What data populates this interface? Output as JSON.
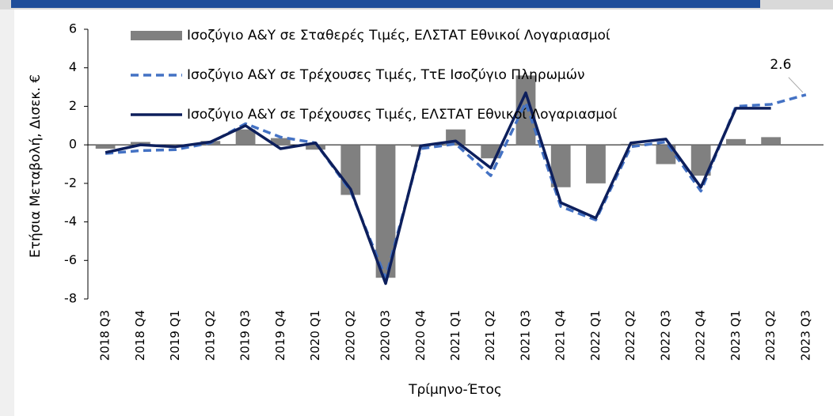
{
  "chart_data": {
    "type": "bar_line",
    "x_label": "Τρίμηνο-Έτος",
    "y_label": "Ετήσια Μεταβολή, Δισεκ. €",
    "categories": [
      "2018 Q3",
      "2018 Q4",
      "2019 Q1",
      "2019 Q2",
      "2019 Q3",
      "2019 Q4",
      "2020 Q1",
      "2020 Q2",
      "2020 Q3",
      "2020 Q4",
      "2021 Q1",
      "2021 Q2",
      "2021 Q3",
      "2021 Q4",
      "2022 Q1",
      "2022 Q2",
      "2022 Q3",
      "2022 Q4",
      "2023 Q1",
      "2023 Q2",
      "2023 Q3"
    ],
    "series": [
      {
        "name": "Ισοζύγιο Α&Υ σε Σταθερές Τιμές, ΕΛΣΤΑΤ Εθνικοί Λογαριασμοί",
        "type": "bar",
        "color": "#808080",
        "values": [
          -0.2,
          0.15,
          -0.05,
          0.2,
          0.8,
          0.35,
          -0.25,
          -2.6,
          -6.9,
          -0.1,
          0.8,
          -0.7,
          3.6,
          -2.2,
          -2.0,
          0.05,
          -1.0,
          -1.6,
          0.3,
          0.4,
          null
        ]
      },
      {
        "name": "Ισοζύγιο Α&Υ σε Τρέχουσες Τιμές, ΤτΕ Ισοζύγιο Πληρωμών",
        "type": "line",
        "dash": true,
        "color": "#4472c4",
        "values": [
          -0.45,
          -0.3,
          -0.25,
          0.1,
          1.1,
          0.4,
          0.1,
          -2.4,
          -6.9,
          -0.2,
          0.05,
          -1.6,
          2.2,
          -3.2,
          -3.9,
          -0.1,
          0.15,
          -2.4,
          2.0,
          2.1,
          2.6
        ],
        "value_labels": [
          null,
          null,
          null,
          null,
          null,
          null,
          null,
          null,
          null,
          null,
          null,
          null,
          null,
          null,
          null,
          null,
          null,
          null,
          null,
          null,
          "2.6"
        ]
      },
      {
        "name": "Ισοζύγιο Α&Υ σε Τρέχουσες Τιμές, ΕΛΣΤΑΤ Εθνικοί Λογαριασμοί",
        "type": "line",
        "dash": false,
        "color": "#0d1f5c",
        "values": [
          -0.4,
          0.0,
          -0.1,
          0.15,
          1.0,
          -0.2,
          0.1,
          -2.3,
          -7.2,
          -0.05,
          0.2,
          -1.2,
          2.7,
          -3.0,
          -3.8,
          0.1,
          0.3,
          -2.2,
          1.9,
          1.9,
          null
        ]
      }
    ],
    "ylim": [
      -8,
      6
    ],
    "yticks": [
      -8,
      -6,
      -4,
      -2,
      0,
      2,
      4,
      6
    ],
    "legend": "top",
    "grid": false
  }
}
